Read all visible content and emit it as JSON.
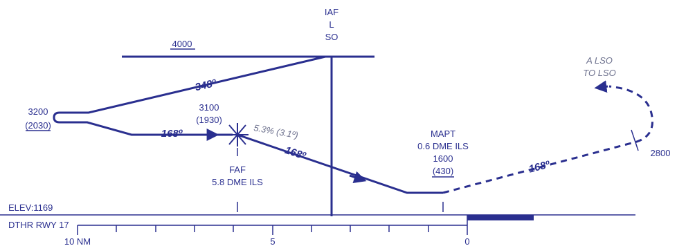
{
  "iaf": {
    "line1": "IAF",
    "line2": "L",
    "line3": "SO"
  },
  "altitude_4000": "4000",
  "hold": {
    "alt": "3200",
    "alt_agl": "(2030)"
  },
  "course_upper": "348º",
  "course_inbound": "168º",
  "course_final": "168º",
  "course_missed": "168º",
  "faf_alt": {
    "alt": "3100",
    "alt_agl": "(1930)"
  },
  "glideslope": "5.3% (3.1º)",
  "faf": {
    "line1": "FAF",
    "line2": "5.8 DME ILS"
  },
  "mapt": {
    "line1": "MAPT",
    "line2": "0.6 DME ILS",
    "line3": "1600",
    "line4": "(430)"
  },
  "missed": {
    "line1": "A LSO",
    "line2": "TO LSO",
    "alt": "2800"
  },
  "elev": "ELEV:1169",
  "dthr": "DTHR RWY 17",
  "scale": {
    "nm10": "10 NM",
    "nm5": "5",
    "nm0": "0"
  },
  "colors": {
    "ink": "#2a2f8f",
    "gray": "#6b6f8c"
  }
}
